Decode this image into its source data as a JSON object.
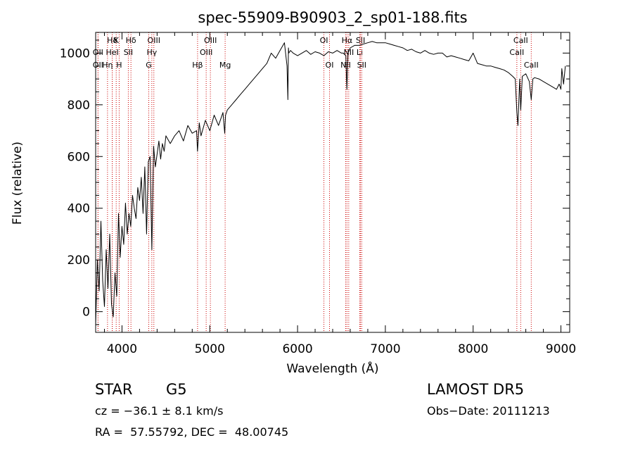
{
  "chart_data": {
    "type": "line",
    "title": "spec-55909-B90903_2_sp01-188.fits",
    "xlabel": "Wavelength (Å)",
    "ylabel": "Flux (relative)",
    "xlim": [
      3700,
      9100
    ],
    "ylim": [
      -80,
      1080
    ],
    "x_ticks": [
      4000,
      5000,
      6000,
      7000,
      8000,
      9000
    ],
    "y_ticks": [
      0,
      200,
      400,
      600,
      800,
      1000
    ],
    "grid": false,
    "line_color": "#000000",
    "marker_color": "#cc0000",
    "series": [
      {
        "x": [
          3700,
          3720,
          3740,
          3760,
          3780,
          3800,
          3820,
          3840,
          3860,
          3880,
          3900,
          3920,
          3940,
          3960,
          3980,
          4000,
          4020,
          4040,
          4060,
          4080,
          4100,
          4120,
          4140,
          4160,
          4180,
          4200,
          4220,
          4240,
          4260,
          4280,
          4300,
          4320,
          4340,
          4360,
          4380,
          4400,
          4420,
          4440,
          4460,
          4480,
          4500,
          4550,
          4600,
          4650,
          4700,
          4750,
          4800,
          4850,
          4860,
          4880,
          4900,
          4950,
          5000,
          5050,
          5100,
          5150,
          5170,
          5180,
          5200,
          5250,
          5300,
          5350,
          5400,
          5450,
          5500,
          5550,
          5600,
          5650,
          5700,
          5750,
          5800,
          5850,
          5880,
          5890,
          5896,
          5900,
          5920,
          5950,
          6000,
          6050,
          6100,
          6150,
          6200,
          6250,
          6300,
          6350,
          6400,
          6450,
          6500,
          6520,
          6550,
          6562,
          6575,
          6600,
          6650,
          6700,
          6750,
          6800,
          6850,
          6900,
          6950,
          7000,
          7050,
          7100,
          7150,
          7200,
          7250,
          7300,
          7350,
          7400,
          7450,
          7500,
          7550,
          7600,
          7650,
          7700,
          7750,
          7800,
          7850,
          7900,
          7950,
          8000,
          8050,
          8100,
          8150,
          8200,
          8250,
          8300,
          8350,
          8400,
          8450,
          8480,
          8498,
          8510,
          8530,
          8542,
          8560,
          8600,
          8640,
          8662,
          8680,
          8700,
          8750,
          8800,
          8850,
          8900,
          8950,
          8980,
          9000,
          9010,
          9030,
          9050
        ],
        "y": [
          -50,
          200,
          80,
          350,
          120,
          20,
          240,
          90,
          300,
          30,
          -20,
          150,
          60,
          380,
          210,
          330,
          260,
          420,
          300,
          380,
          330,
          450,
          400,
          360,
          480,
          430,
          520,
          380,
          560,
          300,
          580,
          600,
          240,
          640,
          560,
          610,
          660,
          590,
          650,
          620,
          680,
          650,
          680,
          700,
          660,
          720,
          690,
          700,
          620,
          730,
          680,
          740,
          700,
          760,
          720,
          770,
          690,
          760,
          780,
          800,
          820,
          840,
          860,
          880,
          900,
          920,
          940,
          960,
          1000,
          980,
          1010,
          1040,
          950,
          820,
          1020,
          1000,
          1010,
          1000,
          990,
          1000,
          1010,
          995,
          1005,
          1000,
          990,
          1005,
          1000,
          1010,
          1000,
          1000,
          990,
          860,
          1000,
          1020,
          1030,
          1030,
          1035,
          1040,
          1045,
          1040,
          1040,
          1040,
          1035,
          1030,
          1025,
          1020,
          1010,
          1015,
          1005,
          1000,
          1010,
          1000,
          995,
          1000,
          1000,
          985,
          990,
          985,
          980,
          975,
          970,
          1000,
          960,
          955,
          950,
          950,
          945,
          940,
          935,
          925,
          910,
          900,
          770,
          720,
          900,
          780,
          910,
          920,
          890,
          820,
          900,
          905,
          900,
          890,
          880,
          870,
          860,
          880,
          860,
          940,
          880,
          950
        ]
      }
    ],
    "line_markers": [
      {
        "label": "Hδ",
        "x": 3889,
        "row": 1
      },
      {
        "label": "K",
        "x": 3934,
        "row": 1
      },
      {
        "label": "Hδ",
        "x": 4102,
        "row": 1
      },
      {
        "label": "OIII",
        "x": 4363,
        "row": 1
      },
      {
        "label": "OIII",
        "x": 5007,
        "row": 1
      },
      {
        "label": "OI",
        "x": 6300,
        "row": 1
      },
      {
        "label": "Hα",
        "x": 6563,
        "row": 1
      },
      {
        "label": "SII",
        "x": 6717,
        "row": 1
      },
      {
        "label": "CaII",
        "x": 8542,
        "row": 1
      },
      {
        "label": "OII",
        "x": 3727,
        "row": 2
      },
      {
        "label": "HeI",
        "x": 3889,
        "row": 2
      },
      {
        "label": "SII",
        "x": 4072,
        "row": 2
      },
      {
        "label": "Hγ",
        "x": 4340,
        "row": 2
      },
      {
        "label": "OIII",
        "x": 4959,
        "row": 2
      },
      {
        "label": "NII",
        "x": 6583,
        "row": 2
      },
      {
        "label": "Li",
        "x": 6708,
        "row": 2
      },
      {
        "label": "CaII",
        "x": 8498,
        "row": 2
      },
      {
        "label": "OII",
        "x": 3727,
        "row": 3
      },
      {
        "label": "Hη",
        "x": 3835,
        "row": 3
      },
      {
        "label": "H",
        "x": 3968,
        "row": 3
      },
      {
        "label": "G",
        "x": 4305,
        "row": 3
      },
      {
        "label": "Hβ",
        "x": 4861,
        "row": 3
      },
      {
        "label": "Mg",
        "x": 5175,
        "row": 3
      },
      {
        "label": "OI",
        "x": 6364,
        "row": 3
      },
      {
        "label": "NII",
        "x": 6548,
        "row": 3
      },
      {
        "label": "SII",
        "x": 6731,
        "row": 3
      },
      {
        "label": "CaII",
        "x": 8662,
        "row": 3
      }
    ]
  },
  "info": {
    "object_class": "STAR",
    "subclass": "G5",
    "survey": "LAMOST DR5",
    "velocity": "cz = −36.1 ± 8.1 km/s",
    "obs_date": "Obs−Date: 20111213",
    "coords": "RA =  57.55792, DEC =  48.00745"
  }
}
